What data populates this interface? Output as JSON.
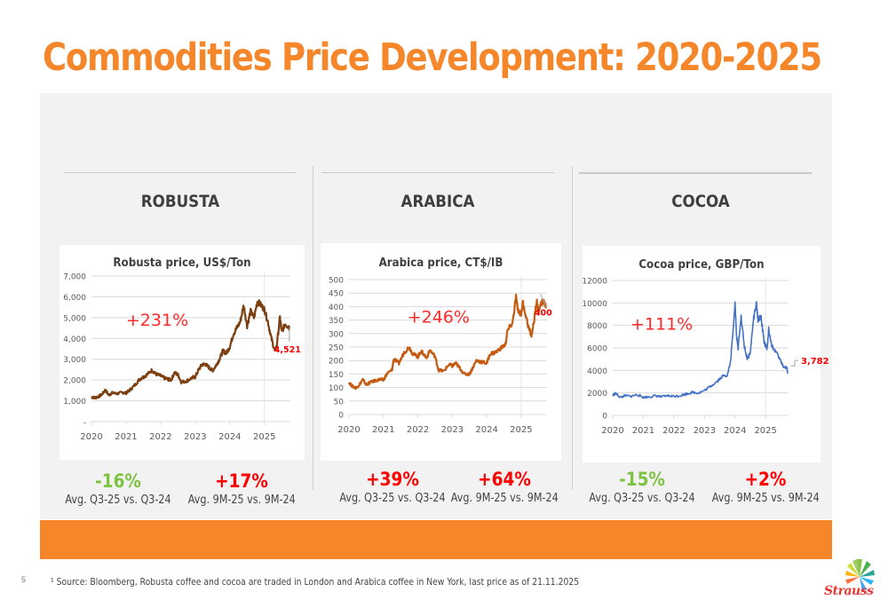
{
  "slide": {
    "title": "Commodities Price Development: 2020-2025",
    "page_number": "5",
    "footnote": "¹ Source: Bloomberg, Robusta coffee and cocoa are traded in London and Arabica coffee in New York, last price as of 21.11.2025",
    "logo_text": "Strauss",
    "colors": {
      "accent": "#f5862a",
      "positive_red": "#ff0000",
      "negative_green": "#7ec242",
      "panel_bg": "#f2f2f2"
    }
  },
  "sections": [
    {
      "name": "ROBUSTA",
      "stats": [
        {
          "value": "-16%",
          "label": "Avg. Q3-25 vs. Q3-24",
          "color": "#7ec242"
        },
        {
          "value": "+17%",
          "label": "Avg. 9M-25 vs. 9M-24",
          "color": "#ff0000"
        }
      ]
    },
    {
      "name": "ARABICA",
      "stats": [
        {
          "value": "+39%",
          "label": "Avg. Q3-25 vs. Q3-24",
          "color": "#ff0000"
        },
        {
          "value": "+64%",
          "label": "Avg. 9M-25 vs. 9M-24",
          "color": "#ff0000"
        }
      ]
    },
    {
      "name": "COCOA",
      "stats": [
        {
          "value": "-15%",
          "label": "Avg. Q3-25 vs. Q3-24",
          "color": "#7ec242"
        },
        {
          "value": "+2%",
          "label": "Avg. 9M-25 vs. 9M-24",
          "color": "#ff0000"
        }
      ]
    }
  ],
  "chart_data": [
    {
      "type": "line",
      "title": "Robusta price, US$/Ton",
      "xlabel": "",
      "ylabel": "",
      "ylim": [
        0,
        7000
      ],
      "yticks": [
        0,
        1000,
        2000,
        3000,
        4000,
        5000,
        6000,
        7000
      ],
      "ytick_labels": [
        "-",
        "1,000",
        "2,000",
        "3,000",
        "4,000",
        "5,000",
        "6,000",
        "7,000"
      ],
      "xlim": [
        2020,
        2025.75
      ],
      "xticks": [
        2020,
        2021,
        2022,
        2023,
        2024,
        2025
      ],
      "xtick_labels": [
        "2020",
        "2021",
        "2022",
        "2023",
        "2024",
        "2025"
      ],
      "grid": true,
      "annotation": "+231%",
      "last_label": "4,521",
      "series": [
        {
          "name": "Robusta",
          "color": "#7b3f10",
          "x": [
            2020.0,
            2020.1,
            2020.2,
            2020.3,
            2020.4,
            2020.5,
            2020.6,
            2020.75,
            2020.9,
            2021.0,
            2021.1,
            2021.25,
            2021.4,
            2021.5,
            2021.6,
            2021.75,
            2021.85,
            2022.0,
            2022.1,
            2022.2,
            2022.3,
            2022.4,
            2022.5,
            2022.6,
            2022.75,
            2022.9,
            2023.0,
            2023.1,
            2023.2,
            2023.3,
            2023.4,
            2023.5,
            2023.6,
            2023.7,
            2023.8,
            2023.9,
            2024.0,
            2024.1,
            2024.2,
            2024.3,
            2024.4,
            2024.5,
            2024.6,
            2024.7,
            2024.8,
            2024.9,
            2025.0,
            2025.1,
            2025.2,
            2025.3,
            2025.35,
            2025.45,
            2025.5,
            2025.6,
            2025.7,
            2025.72
          ],
          "values": [
            1180,
            1150,
            1200,
            1300,
            1520,
            1280,
            1380,
            1350,
            1400,
            1380,
            1500,
            1750,
            2050,
            2150,
            2250,
            2480,
            2300,
            2200,
            2100,
            2050,
            2000,
            2350,
            2250,
            1900,
            1950,
            2100,
            2150,
            2500,
            2750,
            2750,
            2600,
            2450,
            2700,
            3000,
            3400,
            3300,
            3600,
            4200,
            4500,
            4800,
            5600,
            4600,
            5300,
            5000,
            5800,
            5600,
            5400,
            4800,
            4000,
            3400,
            3600,
            5000,
            4300,
            4700,
            4550,
            4521
          ]
        }
      ]
    },
    {
      "type": "line",
      "title": "Arabica price, CT$/IB",
      "xlabel": "",
      "ylabel": "",
      "ylim": [
        0,
        500
      ],
      "yticks": [
        0,
        50,
        100,
        150,
        200,
        250,
        300,
        350,
        400,
        450,
        500
      ],
      "ytick_labels": [
        "0",
        "50",
        "100",
        "150",
        "200",
        "250",
        "300",
        "350",
        "400",
        "450",
        "500"
      ],
      "xlim": [
        2020,
        2025.75
      ],
      "xticks": [
        2020,
        2021,
        2022,
        2023,
        2024,
        2025
      ],
      "xtick_labels": [
        "2020",
        "2021",
        "2022",
        "2023",
        "2024",
        "2025"
      ],
      "grid": true,
      "annotation": "+246%",
      "last_label": "400",
      "series": [
        {
          "name": "Arabica",
          "color": "#c55a11",
          "x": [
            2020.0,
            2020.1,
            2020.2,
            2020.3,
            2020.4,
            2020.5,
            2020.6,
            2020.75,
            2020.9,
            2021.0,
            2021.1,
            2021.25,
            2021.3,
            2021.45,
            2021.6,
            2021.75,
            2021.85,
            2022.0,
            2022.1,
            2022.25,
            2022.35,
            2022.5,
            2022.6,
            2022.75,
            2022.9,
            2023.0,
            2023.1,
            2023.2,
            2023.35,
            2023.5,
            2023.6,
            2023.7,
            2023.85,
            2024.0,
            2024.1,
            2024.25,
            2024.4,
            2024.55,
            2024.6,
            2024.75,
            2024.85,
            2024.9,
            2025.0,
            2025.05,
            2025.2,
            2025.3,
            2025.4,
            2025.45,
            2025.5,
            2025.6,
            2025.65,
            2025.72
          ],
          "values": [
            118,
            105,
            98,
            110,
            130,
            110,
            118,
            125,
            130,
            128,
            150,
            165,
            205,
            190,
            230,
            250,
            225,
            215,
            235,
            210,
            238,
            215,
            165,
            160,
            185,
            180,
            190,
            175,
            150,
            150,
            175,
            200,
            195,
            190,
            225,
            230,
            245,
            260,
            310,
            340,
            435,
            390,
            370,
            415,
            330,
            290,
            370,
            420,
            380,
            415,
            420,
            400
          ]
        }
      ]
    },
    {
      "type": "line",
      "title": "Cocoa price, GBP/Ton",
      "xlabel": "",
      "ylabel": "",
      "ylim": [
        0,
        12000
      ],
      "yticks": [
        0,
        2000,
        4000,
        6000,
        8000,
        10000,
        12000
      ],
      "ytick_labels": [
        "0",
        "2000",
        "4000",
        "6000",
        "8000",
        "10000",
        "12000"
      ],
      "xlim": [
        2020,
        2025.75
      ],
      "xticks": [
        2020,
        2021,
        2022,
        2023,
        2024,
        2025
      ],
      "xtick_labels": [
        "2020",
        "2021",
        "2022",
        "2023",
        "2024",
        "2025"
      ],
      "grid": true,
      "annotation": "+111%",
      "last_label": "3,782",
      "series": [
        {
          "name": "Cocoa",
          "color": "#4472c4",
          "x": [
            2020.0,
            2020.1,
            2020.25,
            2020.4,
            2020.6,
            2020.8,
            2021.0,
            2021.2,
            2021.4,
            2021.6,
            2021.8,
            2022.0,
            2022.2,
            2022.4,
            2022.6,
            2022.8,
            2023.0,
            2023.2,
            2023.4,
            2023.6,
            2023.75,
            2023.85,
            2023.95,
            2024.0,
            2024.05,
            2024.1,
            2024.2,
            2024.3,
            2024.4,
            2024.5,
            2024.6,
            2024.7,
            2024.75,
            2024.85,
            2024.95,
            2025.0,
            2025.05,
            2025.1,
            2025.2,
            2025.35,
            2025.5,
            2025.6,
            2025.7,
            2025.72
          ],
          "values": [
            1800,
            1950,
            1600,
            1750,
            1700,
            1850,
            1600,
            1650,
            1750,
            1650,
            1750,
            1700,
            1750,
            1900,
            2050,
            2000,
            2200,
            2600,
            3000,
            3500,
            3600,
            4700,
            8000,
            10100,
            7000,
            6000,
            8800,
            6200,
            5000,
            5600,
            8500,
            9900,
            8500,
            8800,
            6500,
            6200,
            5900,
            7700,
            6200,
            5600,
            4800,
            4300,
            4200,
            3782
          ]
        }
      ]
    }
  ]
}
